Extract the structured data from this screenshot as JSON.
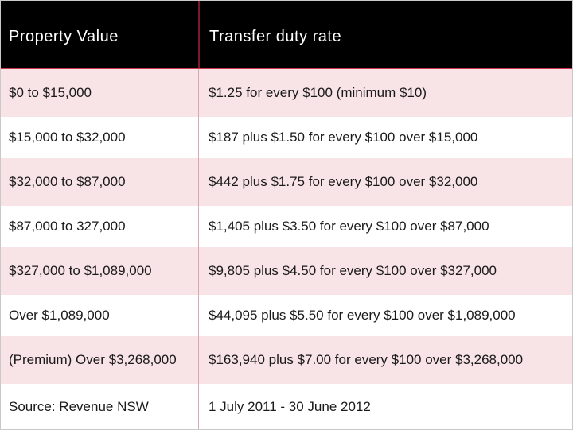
{
  "header": {
    "col1": "Property Value",
    "col2": "Transfer duty rate"
  },
  "rows": [
    {
      "value": "$0 to $15,000",
      "rate": "$1.25 for every $100 (minimum $10)"
    },
    {
      "value": "$15,000 to $32,000",
      "rate": "$187 plus $1.50 for every $100 over $15,000"
    },
    {
      "value": "$32,000 to $87,000",
      "rate": "$442 plus $1.75 for every $100 over $32,000"
    },
    {
      "value": "$87,000 to 327,000",
      "rate": "$1,405 plus $3.50 for every $100 over $87,000"
    },
    {
      "value": "$327,000 to $1,089,000",
      "rate": "$9,805 plus $4.50 for every $100 over $327,000"
    },
    {
      "value": "Over $1,089,000",
      "rate": "$44,095 plus $5.50 for every $100 over $1,089,000"
    },
    {
      "value": "(Premium) Over $3,268,000",
      "rate": "$163,940 plus $7.00 for every $100 over $3,268,000"
    },
    {
      "value": "Source: Revenue NSW",
      "rate": "1 July 2011 - 30 June 2012"
    }
  ],
  "colors": {
    "header_bg": "#000000",
    "header_text": "#ffffff",
    "accent": "#c9384e",
    "row_pink": "#f8e3e6",
    "row_white": "#ffffff"
  }
}
